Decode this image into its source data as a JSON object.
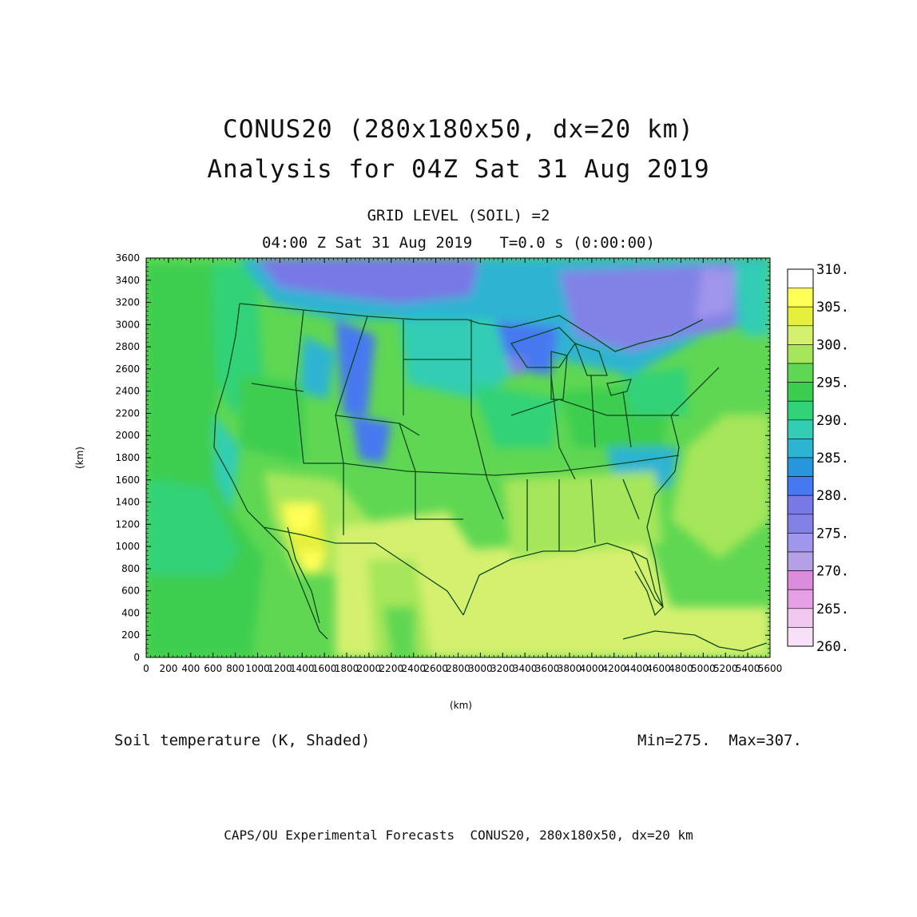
{
  "header": {
    "title_line1": "CONUS20 (280x180x50, dx=20 km)",
    "title_line2": "Analysis for 04Z Sat 31 Aug 2019",
    "subtitle_line1": "GRID LEVEL (SOIL) =2",
    "subtitle_line2": "04:00 Z Sat 31 Aug 2019   T=0.0 s (0:00:00)"
  },
  "axes": {
    "x_label": "(km)",
    "y_label": "(km)",
    "x_ticks": [
      "0",
      "200",
      "400",
      "600",
      "800",
      "1000",
      "1200",
      "1400",
      "1600",
      "1800",
      "2000",
      "2200",
      "2400",
      "2600",
      "2800",
      "3000",
      "3200",
      "3400",
      "3600",
      "3800",
      "4000",
      "4200",
      "4400",
      "4600",
      "4800",
      "5000",
      "5200",
      "5400",
      "5600"
    ],
    "y_ticks": [
      "0",
      "200",
      "400",
      "600",
      "800",
      "1000",
      "1200",
      "1400",
      "1600",
      "1800",
      "2000",
      "2200",
      "2400",
      "2600",
      "2800",
      "3000",
      "3200",
      "3400",
      "3600"
    ],
    "x_range_km": [
      0,
      5600
    ],
    "y_range_km": [
      0,
      3600
    ]
  },
  "colorbar": {
    "labels": [
      "310.",
      "305.",
      "300.",
      "295.",
      "290.",
      "285.",
      "280.",
      "275.",
      "270.",
      "265.",
      "260."
    ],
    "bins": [
      {
        "from": 305.0,
        "to": 307.5,
        "color": "#ffff55"
      },
      {
        "from": 302.5,
        "to": 305.0,
        "color": "#e6f03c"
      },
      {
        "from": 300.0,
        "to": 302.5,
        "color": "#d4f06e"
      },
      {
        "from": 297.5,
        "to": 300.0,
        "color": "#a5e65a"
      },
      {
        "from": 295.0,
        "to": 297.5,
        "color": "#5fd752"
      },
      {
        "from": 292.5,
        "to": 295.0,
        "color": "#3ccd50"
      },
      {
        "from": 290.0,
        "to": 292.5,
        "color": "#32d278"
      },
      {
        "from": 287.5,
        "to": 290.0,
        "color": "#32cdb4"
      },
      {
        "from": 285.0,
        "to": 287.5,
        "color": "#2db4d2"
      },
      {
        "from": 282.5,
        "to": 285.0,
        "color": "#2896dc"
      },
      {
        "from": 280.0,
        "to": 282.5,
        "color": "#4678f0"
      },
      {
        "from": 277.5,
        "to": 280.0,
        "color": "#7878e6"
      },
      {
        "from": 275.0,
        "to": 277.5,
        "color": "#8282e6"
      },
      {
        "from": 272.5,
        "to": 275.0,
        "color": "#a096ec"
      },
      {
        "from": 270.0,
        "to": 272.5,
        "color": "#b4a0e6"
      },
      {
        "from": 267.5,
        "to": 270.0,
        "color": "#dc8cdc"
      },
      {
        "from": 265.0,
        "to": 267.5,
        "color": "#e6a0e6"
      },
      {
        "from": 262.5,
        "to": 265.0,
        "color": "#f0c8f0"
      },
      {
        "from": 260.0,
        "to": 262.5,
        "color": "#f8e1f8"
      }
    ]
  },
  "field": {
    "label": "Soil temperature (K, Shaded)",
    "minmax": "Min=275.  Max=307.",
    "min": 275,
    "max": 307
  },
  "footer": "CAPS/OU Experimental Forecasts  CONUS20, 280x180x50, dx=20 km",
  "colors": {
    "border_line": "#0a4a1e",
    "frame": "#000000"
  }
}
